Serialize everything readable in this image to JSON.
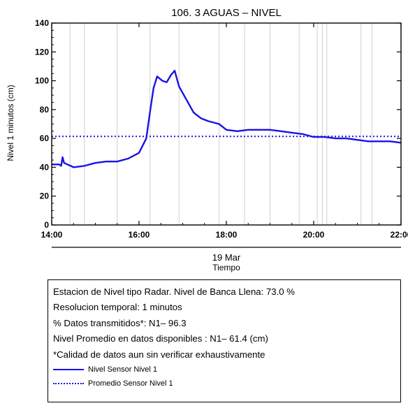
{
  "chart_data": {
    "type": "line",
    "title": "106. 3 AGUAS – NIVEL",
    "ylabel": "Nivel 1 minutos (cm)",
    "xlabel": "Tiempo",
    "date_label": "19 Mar",
    "ylim": [
      0,
      140
    ],
    "yticks": [
      0,
      20,
      40,
      60,
      80,
      100,
      120,
      140
    ],
    "xlim": [
      "14:00",
      "22:00"
    ],
    "xticks": [
      "14:00",
      "16:00",
      "18:00",
      "20:00",
      "22:00"
    ],
    "grid": "vertical gray lines at missing-data times",
    "gap_times": [
      "14:25",
      "14:45",
      "15:30",
      "16:15",
      "16:55",
      "17:50",
      "18:25",
      "19:00",
      "19:40",
      "20:05",
      "20:12",
      "20:18",
      "21:05",
      "21:20"
    ],
    "series": [
      {
        "name": "Nivel Sensor Nivel 1",
        "style": "solid",
        "color": "#1a12e6",
        "points": [
          [
            "14:00",
            42
          ],
          [
            "14:10",
            42
          ],
          [
            "14:13",
            41
          ],
          [
            "14:15",
            47
          ],
          [
            "14:17",
            43
          ],
          [
            "14:30",
            40
          ],
          [
            "14:45",
            41
          ],
          [
            "15:00",
            43
          ],
          [
            "15:15",
            44
          ],
          [
            "15:30",
            44
          ],
          [
            "15:45",
            46
          ],
          [
            "16:00",
            50
          ],
          [
            "16:10",
            60
          ],
          [
            "16:15",
            78
          ],
          [
            "16:20",
            95
          ],
          [
            "16:25",
            103
          ],
          [
            "16:32",
            100
          ],
          [
            "16:38",
            99
          ],
          [
            "16:44",
            104
          ],
          [
            "16:49",
            107
          ],
          [
            "16:55",
            96
          ],
          [
            "17:05",
            87
          ],
          [
            "17:15",
            78
          ],
          [
            "17:25",
            74
          ],
          [
            "17:35",
            72
          ],
          [
            "17:50",
            70
          ],
          [
            "18:00",
            66
          ],
          [
            "18:15",
            65
          ],
          [
            "18:30",
            66
          ],
          [
            "18:45",
            66
          ],
          [
            "19:00",
            66
          ],
          [
            "19:15",
            65
          ],
          [
            "19:30",
            64
          ],
          [
            "19:45",
            63
          ],
          [
            "20:00",
            61
          ],
          [
            "20:15",
            61
          ],
          [
            "20:30",
            60
          ],
          [
            "20:45",
            60
          ],
          [
            "21:00",
            59
          ],
          [
            "21:15",
            58
          ],
          [
            "21:30",
            58
          ],
          [
            "21:45",
            58
          ],
          [
            "22:00",
            57
          ]
        ]
      },
      {
        "name": "Promedio Sensor Nivel 1",
        "style": "dotted",
        "color": "#1a12e6",
        "value": 61.4
      }
    ]
  },
  "info": {
    "lines": [
      "Estacion de Nivel tipo Radar. Nivel de Banca Llena: 73.0 %",
      "Resolucion temporal: 1 minutos",
      "% Datos transmitidos*: N1– 96.3",
      "Nivel Promedio en datos disponibles : N1– 61.4 (cm)",
      "*Calidad de datos aun sin verificar exhaustivamente"
    ],
    "legend": [
      {
        "label": "Nivel Sensor Nivel 1",
        "style": "solid"
      },
      {
        "label": "Promedio Sensor Nivel 1",
        "style": "dotted"
      }
    ]
  }
}
